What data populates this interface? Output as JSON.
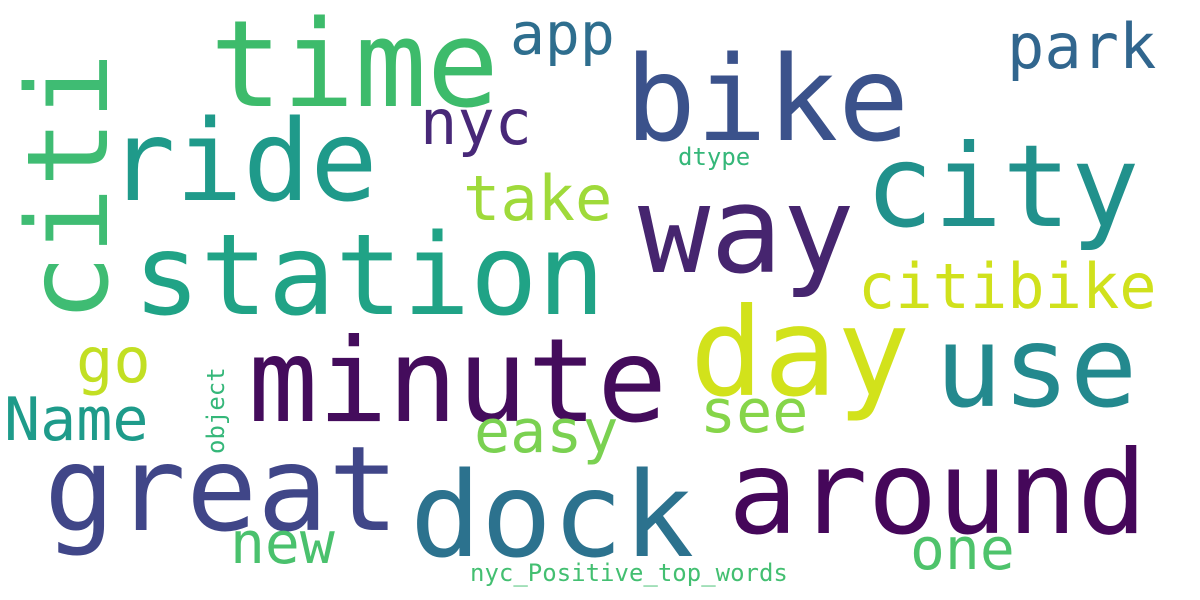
{
  "words": [
    {
      "text": "time",
      "color": "#3dbb6b"
    },
    {
      "text": "bike",
      "color": "#3b528b"
    },
    {
      "text": "citi",
      "color": "#3fbc73"
    },
    {
      "text": "ride",
      "color": "#1f9a8a"
    },
    {
      "text": "station",
      "color": "#20a386"
    },
    {
      "text": "way",
      "color": "#46256f"
    },
    {
      "text": "city",
      "color": "#21918c"
    },
    {
      "text": "minute",
      "color": "#440c5c"
    },
    {
      "text": "day",
      "color": "#d2e21b"
    },
    {
      "text": "use",
      "color": "#23898e"
    },
    {
      "text": "great",
      "color": "#404688"
    },
    {
      "text": "dock",
      "color": "#2c728e"
    },
    {
      "text": "around",
      "color": "#45075a"
    },
    {
      "text": "app",
      "color": "#2e6e8e"
    },
    {
      "text": "park",
      "color": "#31668e"
    },
    {
      "text": "nyc",
      "color": "#482878"
    },
    {
      "text": "take",
      "color": "#9fda3a"
    },
    {
      "text": "citibike",
      "color": "#d0e11c"
    },
    {
      "text": "go",
      "color": "#c2df23"
    },
    {
      "text": "Name",
      "color": "#1e9b8a"
    },
    {
      "text": "see",
      "color": "#86d549"
    },
    {
      "text": "easy",
      "color": "#7ad151"
    },
    {
      "text": "new",
      "color": "#4ac16d"
    },
    {
      "text": "one",
      "color": "#4ec36b"
    },
    {
      "text": "dtype",
      "color": "#35b779"
    },
    {
      "text": "object",
      "color": "#35b779"
    },
    {
      "text": "nyc_Positive_top_words",
      "color": "#43bf71"
    }
  ]
}
